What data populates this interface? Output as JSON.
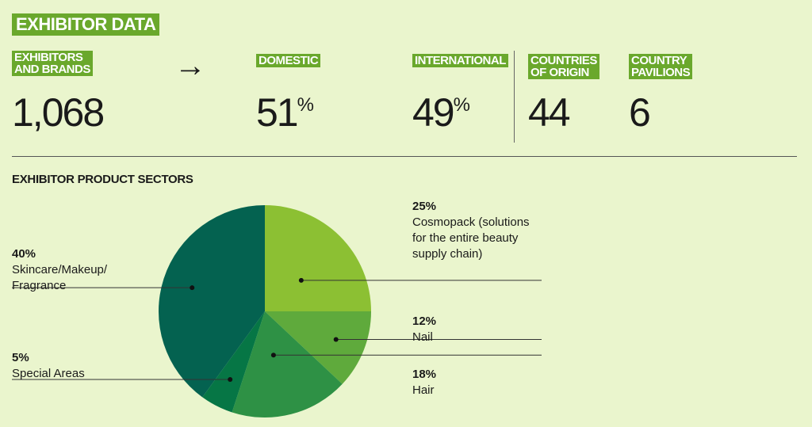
{
  "header": {
    "title": "EXHIBITOR DATA"
  },
  "stats": [
    {
      "label_lines": [
        "EXHIBITORS",
        "AND BRANDS"
      ],
      "value": "1,068",
      "suffix": ""
    },
    {
      "label_lines": [
        "DOMESTIC"
      ],
      "value": "51",
      "suffix": "%"
    },
    {
      "label_lines": [
        "INTERNATIONAL"
      ],
      "value": "49",
      "suffix": "%"
    },
    {
      "label_lines": [
        "COUNTRIES",
        "OF ORIGIN"
      ],
      "value": "44",
      "suffix": ""
    },
    {
      "label_lines": [
        "COUNTRY",
        "PAVILIONS"
      ],
      "value": "6",
      "suffix": ""
    }
  ],
  "chart_data": {
    "type": "pie",
    "title": "EXHIBITOR PRODUCT SECTORS",
    "slices": [
      {
        "pct_label": "25%",
        "value": 25,
        "name": "Cosmopack (solutions\nfor the entire beauty\nsupply chain)",
        "color": "#8cc033"
      },
      {
        "pct_label": "12%",
        "value": 12,
        "name": "Nail",
        "color": "#5faa3c"
      },
      {
        "pct_label": "18%",
        "value": 18,
        "name": "Hair",
        "color": "#2e9145"
      },
      {
        "pct_label": "5%",
        "value": 5,
        "name": "Special Areas",
        "color": "#067645"
      },
      {
        "pct_label": "40%",
        "value": 40,
        "name": "Skincare/Makeup/\nFragrance",
        "color": "#046250"
      }
    ]
  },
  "colors": {
    "background": "#eaf5cd",
    "accent": "#6aa82c",
    "text": "#1a1a1a"
  }
}
